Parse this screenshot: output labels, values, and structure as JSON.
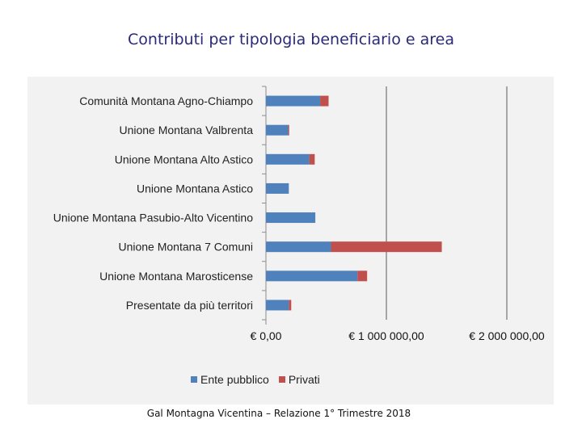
{
  "title": "Contributi per tipologia beneficiario e area",
  "footer": "Gal Montagna Vicentina – Relazione 1° Trimestre 2018",
  "colors": {
    "ente": "#4f81bd",
    "privati": "#c0504d",
    "panel": "#f2f2f2",
    "axis": "#7f7f7f"
  },
  "chart_data": {
    "type": "bar",
    "orientation": "horizontal",
    "stacked": true,
    "title": "Contributi per tipologia beneficiario e area",
    "categories": [
      "Comunità Montana Agno-Chiampo",
      "Unione Montana Valbrenta",
      "Unione Montana Alto Astico",
      "Unione Montana Astico",
      "Unione Montana Pasubio-Alto Vicentino",
      "Unione Montana 7 Comuni",
      "Unione Montana Marosticense",
      "Presentate da più territori"
    ],
    "series": [
      {
        "name": "Ente pubblico",
        "values": [
          450000,
          185000,
          360000,
          190000,
          410000,
          540000,
          760000,
          190000
        ]
      },
      {
        "name": "Privati",
        "values": [
          70000,
          8000,
          45000,
          0,
          0,
          920000,
          80000,
          20000
        ]
      }
    ],
    "xlim": [
      0,
      2000000
    ],
    "xticks": [
      0,
      1000000,
      2000000
    ],
    "xtick_labels": [
      "€ 0,00",
      "€ 1 000 000,00",
      "€ 2 000 000,00"
    ],
    "grid": true,
    "legend": "bottom"
  }
}
